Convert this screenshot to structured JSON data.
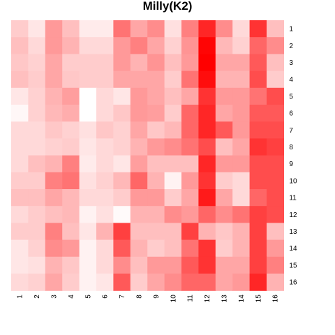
{
  "chart_data": {
    "type": "heatmap",
    "title": "Milly(K2)",
    "x_labels": [
      "1",
      "2",
      "3",
      "4",
      "5",
      "6",
      "7",
      "8",
      "9",
      "10",
      "11",
      "12",
      "13",
      "14",
      "15",
      "16"
    ],
    "y_labels": [
      "1",
      "2",
      "3",
      "4",
      "5",
      "6",
      "7",
      "8",
      "9",
      "10",
      "11",
      "12",
      "13",
      "14",
      "15",
      "16"
    ],
    "color_low": "#ffffff",
    "color_high": "#ff0000",
    "value_range": [
      0,
      1
    ],
    "values": [
      [
        0.2,
        0.1,
        0.4,
        0.25,
        0.08,
        0.08,
        0.55,
        0.35,
        0.45,
        0.12,
        0.5,
        0.85,
        0.45,
        0.15,
        0.8,
        0.25
      ],
      [
        0.25,
        0.15,
        0.4,
        0.3,
        0.15,
        0.15,
        0.4,
        0.5,
        0.35,
        0.18,
        0.42,
        0.98,
        0.28,
        0.18,
        0.6,
        0.45
      ],
      [
        0.22,
        0.18,
        0.35,
        0.2,
        0.2,
        0.2,
        0.4,
        0.3,
        0.42,
        0.25,
        0.4,
        1.0,
        0.35,
        0.35,
        0.65,
        0.25
      ],
      [
        0.25,
        0.2,
        0.35,
        0.22,
        0.2,
        0.2,
        0.35,
        0.35,
        0.35,
        0.2,
        0.55,
        0.95,
        0.3,
        0.3,
        0.7,
        0.2
      ],
      [
        0.1,
        0.18,
        0.3,
        0.38,
        0.0,
        0.15,
        0.1,
        0.4,
        0.35,
        0.25,
        0.35,
        0.8,
        0.4,
        0.4,
        0.55,
        0.7
      ],
      [
        0.03,
        0.18,
        0.28,
        0.32,
        0.0,
        0.15,
        0.22,
        0.4,
        0.38,
        0.2,
        0.6,
        0.85,
        0.35,
        0.4,
        0.65,
        0.65
      ],
      [
        0.15,
        0.15,
        0.22,
        0.18,
        0.12,
        0.22,
        0.18,
        0.35,
        0.22,
        0.28,
        0.6,
        0.85,
        0.65,
        0.4,
        0.7,
        0.7
      ],
      [
        0.15,
        0.15,
        0.18,
        0.2,
        0.1,
        0.15,
        0.18,
        0.3,
        0.4,
        0.45,
        0.55,
        0.7,
        0.25,
        0.35,
        0.8,
        0.75
      ],
      [
        0.15,
        0.25,
        0.3,
        0.5,
        0.08,
        0.15,
        0.1,
        0.38,
        0.25,
        0.25,
        0.25,
        0.85,
        0.4,
        0.4,
        0.7,
        0.7
      ],
      [
        0.2,
        0.2,
        0.5,
        0.55,
        0.12,
        0.18,
        0.28,
        0.6,
        0.3,
        0.05,
        0.4,
        0.8,
        0.2,
        0.15,
        0.7,
        0.7
      ],
      [
        0.25,
        0.25,
        0.35,
        0.28,
        0.15,
        0.15,
        0.2,
        0.4,
        0.4,
        0.2,
        0.35,
        0.9,
        0.35,
        0.15,
        0.6,
        0.7
      ],
      [
        0.15,
        0.2,
        0.25,
        0.28,
        0.05,
        0.12,
        0.02,
        0.3,
        0.3,
        0.45,
        0.4,
        0.6,
        0.45,
        0.55,
        0.75,
        0.7
      ],
      [
        0.2,
        0.2,
        0.5,
        0.25,
        0.1,
        0.3,
        0.75,
        0.25,
        0.25,
        0.25,
        0.75,
        0.3,
        0.22,
        0.3,
        0.75,
        0.25
      ],
      [
        0.1,
        0.18,
        0.45,
        0.4,
        0.05,
        0.15,
        0.65,
        0.3,
        0.2,
        0.25,
        0.55,
        0.8,
        0.2,
        0.3,
        0.75,
        0.4
      ],
      [
        0.1,
        0.12,
        0.3,
        0.22,
        0.05,
        0.15,
        0.45,
        0.25,
        0.4,
        0.4,
        0.65,
        0.8,
        0.35,
        0.35,
        0.75,
        0.5
      ],
      [
        0.15,
        0.18,
        0.35,
        0.2,
        0.05,
        0.1,
        0.65,
        0.2,
        0.35,
        0.45,
        0.6,
        0.6,
        0.35,
        0.4,
        0.85,
        0.3
      ]
    ]
  }
}
